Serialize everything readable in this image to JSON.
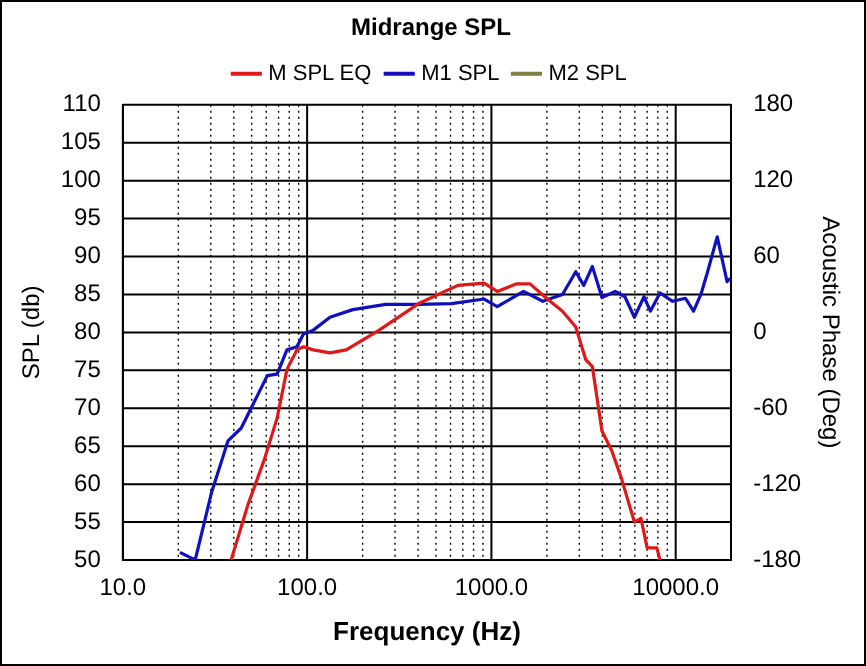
{
  "chart_data": {
    "type": "line",
    "title": "Midrange SPL",
    "xlabel": "Frequency (Hz)",
    "ylabel": "SPL (db)",
    "y2label": "Acoustic Phase (Deg)",
    "log": "x",
    "grid": true,
    "legend": "top",
    "marker": "none",
    "line_style": "solid",
    "xlim": [
      10,
      20000
    ],
    "xticks": [
      {
        "value": 10,
        "label": "10.0"
      },
      {
        "value": 20,
        "label": null
      },
      {
        "value": 30,
        "label": null
      },
      {
        "value": 40,
        "label": null
      },
      {
        "value": 50,
        "label": null
      },
      {
        "value": 60,
        "label": null
      },
      {
        "value": 70,
        "label": null
      },
      {
        "value": 80,
        "label": null
      },
      {
        "value": 90,
        "label": null
      },
      {
        "value": 100,
        "label": "100.0"
      },
      {
        "value": 200,
        "label": null
      },
      {
        "value": 300,
        "label": null
      },
      {
        "value": 400,
        "label": null
      },
      {
        "value": 500,
        "label": null
      },
      {
        "value": 600,
        "label": null
      },
      {
        "value": 700,
        "label": null
      },
      {
        "value": 800,
        "label": null
      },
      {
        "value": 900,
        "label": null
      },
      {
        "value": 1000,
        "label": "1000.0"
      },
      {
        "value": 2000,
        "label": null
      },
      {
        "value": 3000,
        "label": null
      },
      {
        "value": 4000,
        "label": null
      },
      {
        "value": 5000,
        "label": null
      },
      {
        "value": 6000,
        "label": null
      },
      {
        "value": 7000,
        "label": null
      },
      {
        "value": 8000,
        "label": null
      },
      {
        "value": 9000,
        "label": null
      },
      {
        "value": 10000,
        "label": "10000.0"
      },
      {
        "value": 20000,
        "label": null
      }
    ],
    "ylim": [
      50,
      110
    ],
    "yticks": [
      50,
      55,
      60,
      65,
      70,
      75,
      80,
      85,
      90,
      95,
      100,
      105,
      110
    ],
    "y2lim": [
      -180,
      180
    ],
    "y2ticks": [
      -180,
      -120,
      -60,
      0,
      60,
      120,
      180
    ],
    "series": [
      {
        "name": "M SPL EQ",
        "color": "#e01818",
        "x": [
          38.7,
          47.6,
          58.5,
          68.7,
          77.7,
          88,
          95.5,
          108,
          133,
          163,
          246,
          403,
          658,
          913,
          1076,
          1370,
          1620,
          1990,
          2430,
          2870,
          3250,
          3530,
          3980,
          4500,
          5100,
          5970,
          6480,
          7000,
          7900,
          8220
        ],
        "values": [
          50,
          57.2,
          63.2,
          68.7,
          75.1,
          77.7,
          78.1,
          77.7,
          77.3,
          77.7,
          80.3,
          83.8,
          86.2,
          86.5,
          85.4,
          86.4,
          86.4,
          84.5,
          82.8,
          80.7,
          76.4,
          75.5,
          67,
          64.4,
          60.6,
          55,
          55.5,
          51.6,
          51.6,
          50
        ]
      },
      {
        "name": "M1 SPL",
        "color": "#1010c0",
        "x": [
          20.4,
          24.7,
          30.3,
          37.2,
          43.9,
          53.8,
          60.8,
          68.7,
          77.7,
          88,
          95.5,
          108,
          133,
          177,
          267,
          403,
          607,
          913,
          1076,
          1494,
          1900,
          2430,
          2870,
          3170,
          3530,
          3980,
          4700,
          5300,
          5970,
          6730,
          7290,
          8220,
          9620,
          11300,
          12500,
          13700,
          14900,
          16800,
          19000,
          19800
        ],
        "values": [
          51,
          50,
          58.9,
          65.7,
          67.4,
          71.7,
          74.3,
          74.5,
          77.7,
          78.1,
          79.8,
          80.3,
          82,
          83,
          83.7,
          83.7,
          83.8,
          84.4,
          83.4,
          85.4,
          84.1,
          85,
          88,
          86.2,
          88.7,
          84.6,
          85.4,
          84.7,
          82,
          84.7,
          82.8,
          85.2,
          84.1,
          84.5,
          82.8,
          85,
          88,
          92.6,
          86.7,
          87.1
        ]
      },
      {
        "name": "M2 SPL",
        "color": "#808040"
      }
    ]
  }
}
